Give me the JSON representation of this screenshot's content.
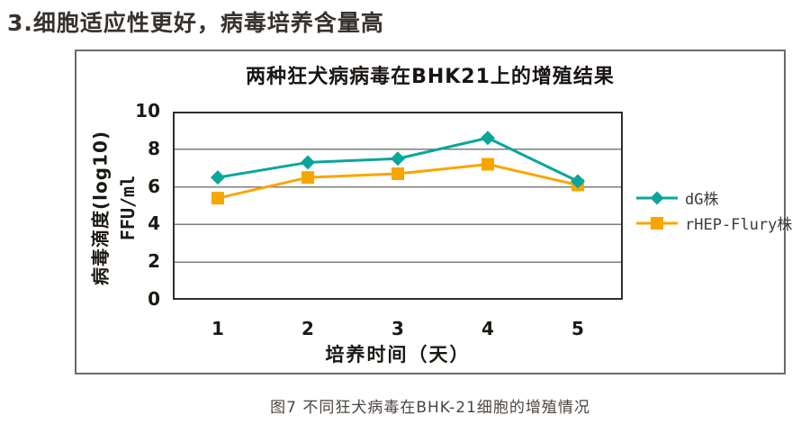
{
  "page": {
    "heading": "3.细胞适应性更好，病毒培养含量高",
    "caption": "图7 不同狂犬病毒在BHK-21细胞的增殖情况"
  },
  "chart_data": {
    "type": "line",
    "title": "两种狂犬病病毒在BHK21上的增殖结果",
    "xlabel": "培养时间（天）",
    "ylabel_line1": "病毒滴度(log10)",
    "ylabel_line2": "FFU/ml",
    "categories": [
      "1",
      "2",
      "3",
      "4",
      "5"
    ],
    "series": [
      {
        "name": "dG株",
        "marker": "diamond",
        "color": "#0ba69a",
        "values": [
          6.5,
          7.3,
          7.5,
          8.6,
          6.3
        ]
      },
      {
        "name": "rHEP-Flury株",
        "marker": "square",
        "color": "#f7a600",
        "values": [
          5.4,
          6.5,
          6.7,
          7.2,
          6.1
        ]
      }
    ],
    "ylim": [
      0,
      10
    ],
    "yticks": [
      0,
      2,
      4,
      6,
      8,
      10
    ],
    "grid": true,
    "grid_color": "#7e7e7e",
    "plot_border_color": "#2d2d2d",
    "legend_position": "right-inside"
  }
}
